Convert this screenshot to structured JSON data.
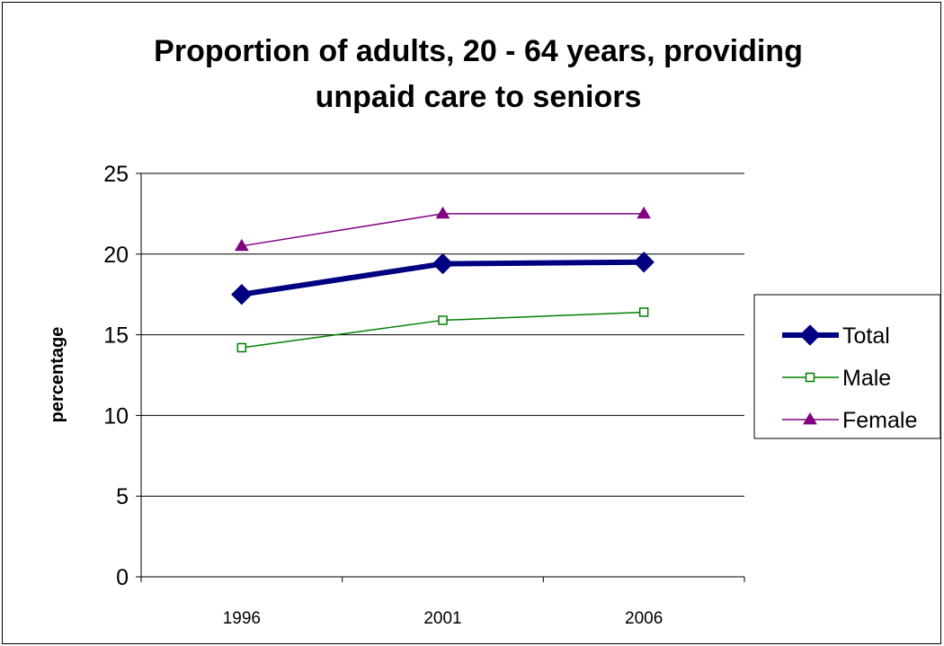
{
  "chart_data": {
    "type": "line",
    "title_lines": [
      "Proportion of adults, 20 - 64 years, providing",
      "unpaid care to seniors"
    ],
    "xlabel": "",
    "ylabel": "percentage",
    "categories": [
      "1996",
      "2001",
      "2006"
    ],
    "ylim": [
      0,
      25
    ],
    "yticks": [
      "0",
      "5",
      "10",
      "15",
      "20",
      "25"
    ],
    "grid": true,
    "legend_position": "right",
    "series": [
      {
        "name": "Total",
        "values": [
          17.5,
          19.4,
          19.5
        ],
        "color": "#000080",
        "marker": "diamond"
      },
      {
        "name": "Male",
        "values": [
          14.2,
          15.9,
          16.4
        ],
        "color": "#008000",
        "marker": "square"
      },
      {
        "name": "Female",
        "values": [
          20.5,
          22.5,
          22.5
        ],
        "color": "#800080",
        "marker": "triangle"
      }
    ]
  }
}
